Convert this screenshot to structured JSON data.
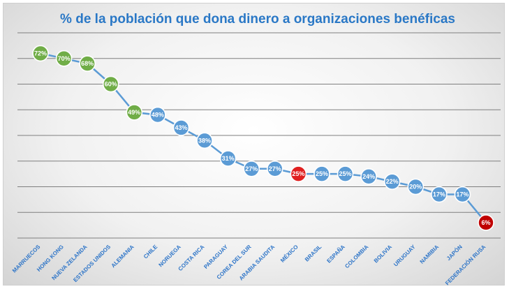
{
  "chart_data": {
    "type": "line",
    "title": "% de la población que dona dinero a organizaciones benéficas",
    "xlabel": "",
    "ylabel": "",
    "ylim": [
      0,
      80
    ],
    "grid": true,
    "legend": "none",
    "categories": [
      "MARRUECOS",
      "HONG KONG",
      "NUEVA ZELANDA",
      "ESTADOS UNIDOS",
      "ALEMANIA",
      "CHILE",
      "NORUEGA",
      "COSTA RICA",
      "PARAGUAY",
      "COREA DEL SUR",
      "ARABIA SAUDITA",
      "MÉXICO",
      "BRASIL",
      "ESPAÑA",
      "COLOMBIA",
      "BOLIVIA",
      "URUGUAY",
      "NAMIBIA",
      "JAPÓN",
      "FEDERACIÓN RUSA"
    ],
    "values": [
      72,
      70,
      68,
      60,
      49,
      48,
      43,
      38,
      31,
      27,
      27,
      25,
      25,
      25,
      24,
      22,
      20,
      17,
      17,
      6
    ],
    "data_labels": [
      "72%",
      "70%",
      "68%",
      "60%",
      "49%",
      "48%",
      "43%",
      "38%",
      "31%",
      "27%",
      "27%",
      "25%",
      "25%",
      "25%",
      "24%",
      "22%",
      "20%",
      "17%",
      "17%",
      "6%"
    ],
    "marker_groups": [
      "high",
      "high",
      "high",
      "high",
      "high",
      "mid",
      "mid",
      "mid",
      "mid",
      "mid",
      "mid",
      "focus",
      "mid",
      "mid",
      "mid",
      "mid",
      "mid",
      "mid",
      "mid",
      "low"
    ],
    "colors": {
      "line": "#5b9bd5",
      "high": "#70ad47",
      "mid": "#5b9bd5",
      "focus": "#e02020",
      "low": "#c00000",
      "grid": "#7f7f7f",
      "title": "#2a78c6",
      "tick_labels": "#2e75c8"
    }
  }
}
